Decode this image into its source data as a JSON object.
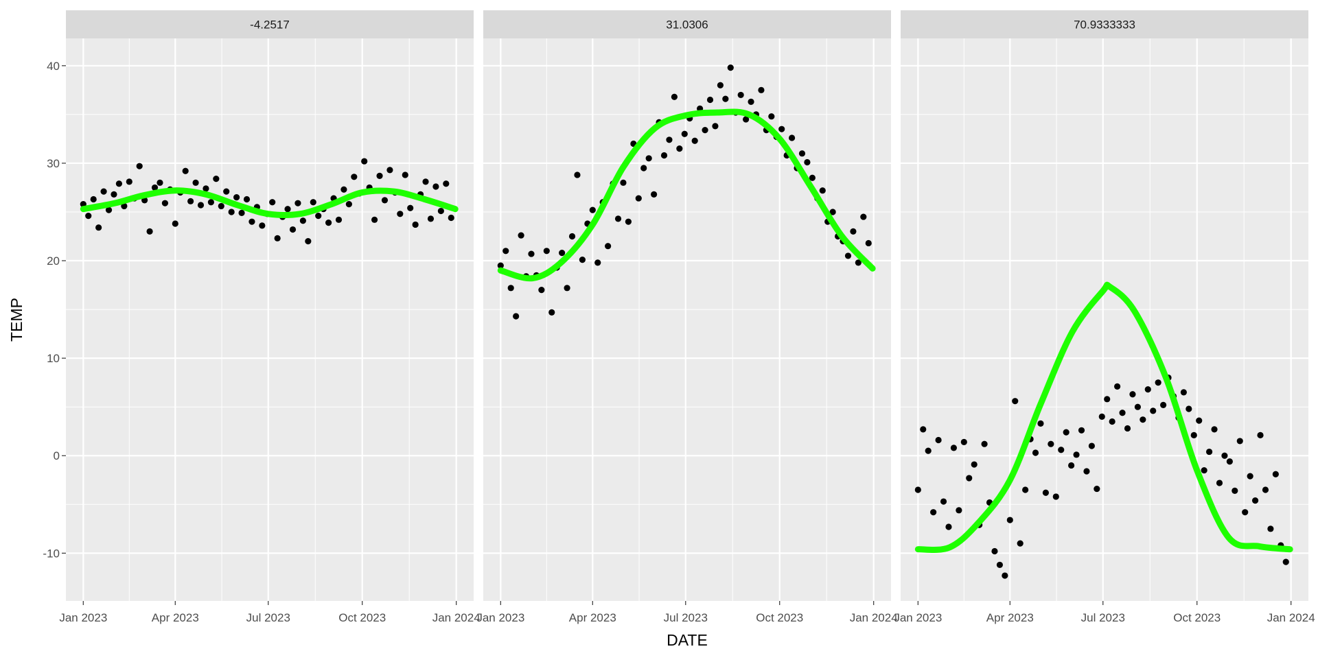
{
  "chart_data": {
    "type": "scatter",
    "facet_labels": [
      "-4.2517",
      "31.0306",
      "70.9333333"
    ],
    "xlabel": "DATE",
    "ylabel": "TEMP",
    "xlim": [
      "2022-12-15",
      "2024-01-18"
    ],
    "ylim": [
      -14.9,
      42.8
    ],
    "x_ticks": [
      {
        "date": "2023-01-01",
        "label": "Jan 2023"
      },
      {
        "date": "2023-04-01",
        "label": "Apr 2023"
      },
      {
        "date": "2023-07-01",
        "label": "Jul 2023"
      },
      {
        "date": "2023-10-01",
        "label": "Oct 2023"
      },
      {
        "date": "2024-01-01",
        "label": "Jan 2024"
      }
    ],
    "y_ticks": [
      {
        "value": -10,
        "label": "-10"
      },
      {
        "value": 0,
        "label": "0"
      },
      {
        "value": 10,
        "label": "10"
      },
      {
        "value": 20,
        "label": "20"
      },
      {
        "value": 30,
        "label": "30"
      },
      {
        "value": 40,
        "label": "40"
      }
    ],
    "grid": true,
    "colors": {
      "points": "#000000",
      "smooth": "#1EFF00",
      "panel_bg": "#EBEBEB",
      "strip_bg": "#D9D9D9",
      "grid": "#FFFFFF"
    },
    "point_dates": [
      "2023-01-01",
      "2023-01-06",
      "2023-01-11",
      "2023-01-16",
      "2023-01-21",
      "2023-01-26",
      "2023-01-31",
      "2023-02-05",
      "2023-02-10",
      "2023-02-15",
      "2023-02-20",
      "2023-02-25",
      "2023-03-02",
      "2023-03-07",
      "2023-03-12",
      "2023-03-17",
      "2023-03-22",
      "2023-03-27",
      "2023-04-01",
      "2023-04-06",
      "2023-04-11",
      "2023-04-16",
      "2023-04-21",
      "2023-04-26",
      "2023-05-01",
      "2023-05-06",
      "2023-05-11",
      "2023-05-16",
      "2023-05-21",
      "2023-05-26",
      "2023-05-31",
      "2023-06-05",
      "2023-06-10",
      "2023-06-15",
      "2023-06-20",
      "2023-06-25",
      "2023-06-30",
      "2023-07-05",
      "2023-07-10",
      "2023-07-15",
      "2023-07-20",
      "2023-07-25",
      "2023-07-30",
      "2023-08-04",
      "2023-08-09",
      "2023-08-14",
      "2023-08-19",
      "2023-08-24",
      "2023-08-29",
      "2023-09-03",
      "2023-09-08",
      "2023-09-13",
      "2023-09-18",
      "2023-09-23",
      "2023-09-28",
      "2023-10-03",
      "2023-10-08",
      "2023-10-13",
      "2023-10-18",
      "2023-10-23",
      "2023-10-28",
      "2023-11-02",
      "2023-11-07",
      "2023-11-12",
      "2023-11-17",
      "2023-11-22",
      "2023-11-27",
      "2023-12-02",
      "2023-12-07",
      "2023-12-12",
      "2023-12-17",
      "2023-12-22",
      "2023-12-27"
    ],
    "panels": [
      {
        "facet": "-4.2517",
        "temp": [
          25.8,
          24.6,
          26.3,
          23.4,
          27.1,
          25.2,
          26.8,
          27.9,
          25.6,
          28.1,
          26.4,
          29.7,
          26.2,
          23.0,
          27.5,
          28.0,
          25.9,
          27.3,
          23.8,
          27.0,
          29.2,
          26.1,
          28.0,
          25.7,
          27.4,
          26.0,
          28.4,
          25.6,
          27.1,
          25.0,
          26.5,
          24.9,
          26.3,
          24.0,
          25.5,
          23.6,
          24.8,
          26.0,
          22.3,
          24.5,
          25.3,
          23.2,
          25.9,
          24.1,
          22.0,
          26.0,
          24.6,
          25.3,
          23.9,
          26.4,
          24.2,
          27.3,
          25.8,
          28.6,
          26.9,
          30.2,
          27.5,
          24.2,
          28.7,
          26.2,
          29.3,
          27.0,
          24.8,
          28.8,
          25.4,
          23.7,
          26.8,
          28.1,
          24.3,
          27.6,
          25.1,
          27.9,
          24.4
        ],
        "smooth": {
          "dates": [
            "2023-01-01",
            "2023-02-01",
            "2023-03-01",
            "2023-04-01",
            "2023-05-01",
            "2023-06-01",
            "2023-07-01",
            "2023-08-01",
            "2023-09-01",
            "2023-10-01",
            "2023-11-01",
            "2023-12-01",
            "2023-12-31"
          ],
          "temp": [
            25.3,
            25.9,
            26.7,
            27.2,
            26.8,
            25.7,
            24.8,
            24.8,
            25.8,
            27.0,
            27.1,
            26.3,
            25.3
          ]
        }
      },
      {
        "facet": "31.0306",
        "temp": [
          19.5,
          21.0,
          17.2,
          14.3,
          22.6,
          18.4,
          20.7,
          18.5,
          17.0,
          21.0,
          14.7,
          19.3,
          20.8,
          17.2,
          22.5,
          28.8,
          20.1,
          23.8,
          25.2,
          19.8,
          26.0,
          21.5,
          27.9,
          24.3,
          28.0,
          24.0,
          32.0,
          26.4,
          29.5,
          30.5,
          26.8,
          34.2,
          30.8,
          32.4,
          36.8,
          31.5,
          33.0,
          34.6,
          32.3,
          35.6,
          33.4,
          36.5,
          33.8,
          38.0,
          36.6,
          39.8,
          35.2,
          37.0,
          34.5,
          36.3,
          35.0,
          37.5,
          33.4,
          34.8,
          32.7,
          33.5,
          30.8,
          32.6,
          29.5,
          31.0,
          30.1,
          28.5,
          26.4,
          27.2,
          24.0,
          25.0,
          22.5,
          22.0,
          20.5,
          23.0,
          19.8,
          24.5,
          21.8
        ],
        "smooth": {
          "dates": [
            "2023-01-01",
            "2023-02-01",
            "2023-03-01",
            "2023-04-01",
            "2023-05-01",
            "2023-06-01",
            "2023-07-01",
            "2023-08-01",
            "2023-09-01",
            "2023-10-01",
            "2023-11-01",
            "2023-12-01",
            "2023-12-31"
          ],
          "temp": [
            19.0,
            18.2,
            19.8,
            23.7,
            29.6,
            33.6,
            34.9,
            35.2,
            35.0,
            32.5,
            27.5,
            22.5,
            19.2
          ]
        }
      },
      {
        "facet": "70.9333333",
        "temp": [
          -3.5,
          2.7,
          0.5,
          -5.8,
          1.6,
          -4.7,
          -7.3,
          0.8,
          -5.6,
          1.4,
          -2.3,
          -0.9,
          -7.1,
          1.2,
          -4.8,
          -9.8,
          -11.2,
          -12.3,
          -6.6,
          5.6,
          -9.0,
          -3.5,
          1.7,
          0.3,
          3.3,
          -3.8,
          1.2,
          -4.2,
          0.6,
          2.4,
          -1.0,
          0.1,
          2.6,
          -1.6,
          1.0,
          -3.4,
          4.0,
          5.8,
          3.5,
          7.1,
          4.4,
          2.8,
          6.3,
          5.0,
          3.7,
          6.8,
          4.6,
          7.5,
          5.2,
          8.0,
          6.1,
          3.9,
          6.5,
          4.8,
          2.1,
          3.6,
          -1.5,
          0.4,
          2.7,
          -2.8,
          0.0,
          -0.6,
          -3.6,
          1.5,
          -5.8,
          -2.1,
          -4.6,
          2.1,
          -3.5,
          -7.5,
          -1.9,
          -9.2,
          -10.9
        ],
        "smooth": {
          "dates": [
            "2023-01-01",
            "2023-02-01",
            "2023-03-01",
            "2023-04-01",
            "2023-05-01",
            "2023-06-01",
            "2023-07-01",
            "2023-07-08",
            "2023-08-01",
            "2023-09-01",
            "2023-10-01",
            "2023-11-01",
            "2023-12-01",
            "2023-12-31"
          ],
          "temp": [
            -9.6,
            -9.4,
            -6.9,
            -2.5,
            5.3,
            12.7,
            16.9,
            17.3,
            14.8,
            7.9,
            -1.5,
            -8.4,
            -9.3,
            -9.6
          ]
        }
      }
    ]
  }
}
